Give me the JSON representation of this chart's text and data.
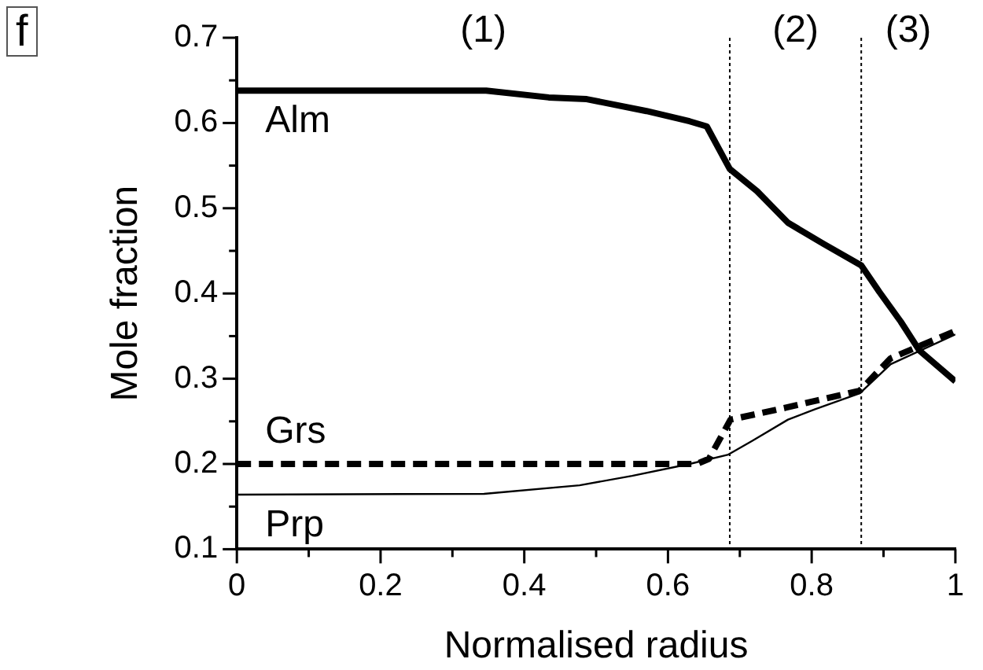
{
  "chart_data": {
    "type": "line",
    "xlabel": "Normalised radius",
    "ylabel": "Mole fraction",
    "xlim": [
      0,
      1
    ],
    "xticks": [
      0,
      {
        "value": 0.1,
        "label": null
      },
      0.2,
      {
        "value": 0.3,
        "label": null
      },
      0.4,
      {
        "value": 0.5,
        "label": null
      },
      0.6,
      {
        "value": 0.7,
        "label": null
      },
      0.8,
      {
        "value": 0.9,
        "label": null
      },
      1
    ],
    "ylim": [
      0.1,
      0.7
    ],
    "yticks": [
      0.1,
      {
        "value": 0.15,
        "label": null
      },
      0.2,
      {
        "value": 0.25,
        "label": null
      },
      0.3,
      {
        "value": 0.35,
        "label": null
      },
      0.4,
      {
        "value": 0.45,
        "label": null
      },
      0.5,
      {
        "value": 0.55,
        "label": null
      },
      0.6,
      {
        "value": 0.65,
        "label": null
      },
      0.7
    ],
    "grid": false,
    "legend": false,
    "marker": "none",
    "series": [
      {
        "name": "Alm",
        "color": "#000000",
        "line_style": "solid",
        "x": [
          0,
          0.347,
          0.434,
          0.487,
          0.57,
          0.63,
          0.654,
          0.686,
          0.724,
          0.767,
          0.817,
          0.869,
          0.894,
          0.924,
          0.95,
          1
        ],
        "values": [
          0.638,
          0.638,
          0.63,
          0.628,
          0.614,
          0.602,
          0.596,
          0.546,
          0.52,
          0.483,
          0.458,
          0.433,
          0.402,
          0.367,
          0.333,
          0.297
        ]
      },
      {
        "name": "Grs",
        "color": "#000000",
        "line_style": "dashed",
        "x": [
          0,
          0.64,
          0.657,
          0.687,
          0.764,
          0.867,
          0.91,
          1
        ],
        "values": [
          0.2,
          0.2,
          0.206,
          0.252,
          0.266,
          0.286,
          0.324,
          0.356
        ]
      },
      {
        "name": "Prp",
        "color": "#000000",
        "line_style": "solid",
        "x": [
          0,
          0.344,
          0.477,
          0.55,
          0.63,
          0.684,
          0.717,
          0.767,
          0.804,
          0.867,
          0.91,
          1
        ],
        "values": [
          0.164,
          0.165,
          0.175,
          0.186,
          0.2,
          0.211,
          0.227,
          0.252,
          0.264,
          0.283,
          0.317,
          0.352
        ]
      }
    ],
    "ref_lines": [
      {
        "axis": "x",
        "value": 0.686,
        "line_style": "dotted"
      },
      {
        "axis": "x",
        "value": 0.869,
        "line_style": "dotted"
      }
    ],
    "annotations": [
      "f",
      "(1)",
      "(2)",
      "(3)"
    ]
  }
}
